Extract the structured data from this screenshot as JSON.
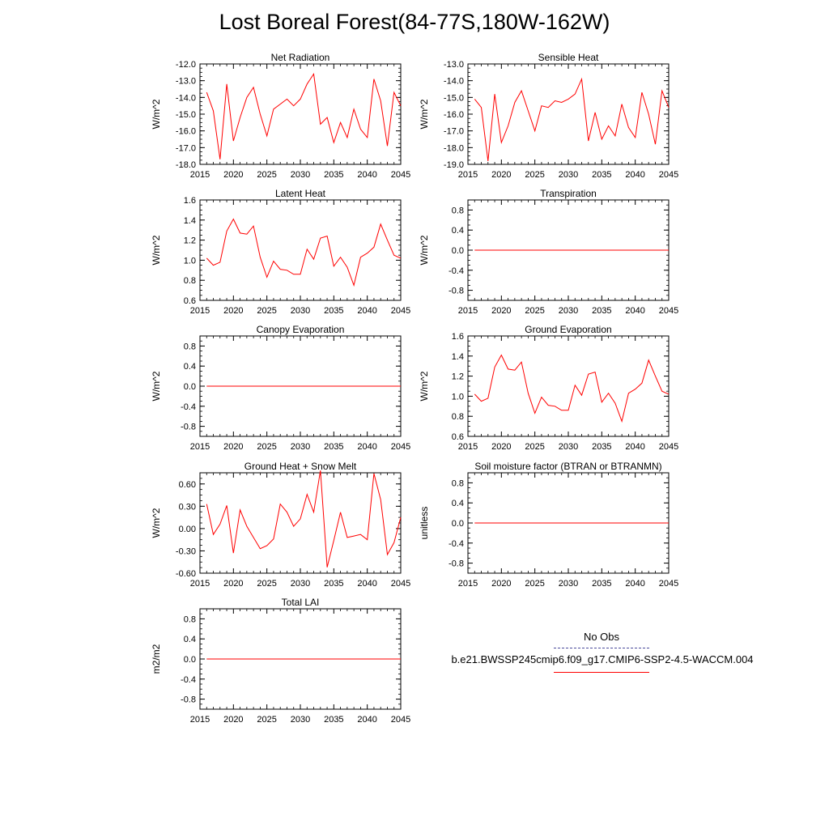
{
  "figure": {
    "title": "Lost Boreal Forest(84-77S,180W-162W)"
  },
  "legend": {
    "obs_label": "No Obs",
    "obs_color": "#4a4a9c",
    "model_label": "b.e21.BWSSP245cmip6.f09_g17.CMIP6-SSP2-4.5-WACCM.004",
    "model_color": "#ff0000"
  },
  "chart_data": [
    {
      "type": "line",
      "title": "Net Radiation",
      "ylabel": "W/m^2",
      "xlim": [
        2015,
        2045
      ],
      "ylim": [
        -18,
        -12
      ],
      "xticks": [
        2015,
        2020,
        2025,
        2030,
        2035,
        2040,
        2045
      ],
      "xtick_labels": [
        "2015",
        "2020",
        "2025",
        "2030",
        "2035",
        "2040",
        "2045"
      ],
      "yticks": [
        -18,
        -17,
        -16,
        -15,
        -14,
        -13,
        -12
      ],
      "ytick_labels": [
        "-18.0",
        "-17.0",
        "-16.0",
        "-15.0",
        "-14.0",
        "-13.0",
        "-12.0"
      ],
      "series": [
        {
          "name": "b.e21.BWSSP245cmip6.f09_g17.CMIP6-SSP2-4.5-WACCM.004",
          "color": "#ff0000",
          "x": [
            2016,
            2017,
            2018,
            2019,
            2020,
            2021,
            2022,
            2023,
            2024,
            2025,
            2026,
            2027,
            2028,
            2029,
            2030,
            2031,
            2032,
            2033,
            2034,
            2035,
            2036,
            2037,
            2038,
            2039,
            2040,
            2041,
            2042,
            2043,
            2044,
            2045
          ],
          "y": [
            -13.7,
            -14.8,
            -17.7,
            -13.2,
            -16.6,
            -15.2,
            -14.0,
            -13.4,
            -15.0,
            -16.3,
            -14.7,
            -14.4,
            -14.1,
            -14.5,
            -14.1,
            -13.2,
            -12.6,
            -15.6,
            -15.2,
            -16.7,
            -15.5,
            -16.4,
            -14.7,
            -15.9,
            -16.4,
            -12.9,
            -14.2,
            -16.9,
            -13.7,
            -14.5
          ]
        }
      ]
    },
    {
      "type": "line",
      "title": "Sensible Heat",
      "ylabel": "W/m^2",
      "xlim": [
        2015,
        2045
      ],
      "ylim": [
        -19,
        -13
      ],
      "xticks": [
        2015,
        2020,
        2025,
        2030,
        2035,
        2040,
        2045
      ],
      "xtick_labels": [
        "2015",
        "2020",
        "2025",
        "2030",
        "2035",
        "2040",
        "2045"
      ],
      "yticks": [
        -19,
        -18,
        -17,
        -16,
        -15,
        -14,
        -13
      ],
      "ytick_labels": [
        "-19.0",
        "-18.0",
        "-17.0",
        "-16.0",
        "-15.0",
        "-14.0",
        "-13.0"
      ],
      "series": [
        {
          "name": "b.e21.BWSSP245cmip6.f09_g17.CMIP6-SSP2-4.5-WACCM.004",
          "color": "#ff0000",
          "x": [
            2016,
            2017,
            2018,
            2019,
            2020,
            2021,
            2022,
            2023,
            2024,
            2025,
            2026,
            2027,
            2028,
            2029,
            2030,
            2031,
            2032,
            2033,
            2034,
            2035,
            2036,
            2037,
            2038,
            2039,
            2040,
            2041,
            2042,
            2043,
            2044,
            2045
          ],
          "y": [
            -15.1,
            -15.6,
            -18.8,
            -14.8,
            -17.7,
            -16.7,
            -15.3,
            -14.6,
            -15.8,
            -17.0,
            -15.5,
            -15.6,
            -15.2,
            -15.3,
            -15.1,
            -14.8,
            -13.9,
            -17.6,
            -15.9,
            -17.5,
            -16.7,
            -17.3,
            -15.4,
            -16.8,
            -17.4,
            -14.7,
            -16.0,
            -17.8,
            -14.6,
            -15.6
          ]
        }
      ]
    },
    {
      "type": "line",
      "title": "Latent Heat",
      "ylabel": "W/m^2",
      "xlim": [
        2015,
        2045
      ],
      "ylim": [
        0.6,
        1.6
      ],
      "xticks": [
        2015,
        2020,
        2025,
        2030,
        2035,
        2040,
        2045
      ],
      "xtick_labels": [
        "2015",
        "2020",
        "2025",
        "2030",
        "2035",
        "2040",
        "2045"
      ],
      "yticks": [
        0.6,
        0.8,
        1.0,
        1.2,
        1.4,
        1.6
      ],
      "ytick_labels": [
        "0.6",
        "0.8",
        "1.0",
        "1.2",
        "1.4",
        "1.6"
      ],
      "series": [
        {
          "name": "b.e21.BWSSP245cmip6.f09_g17.CMIP6-SSP2-4.5-WACCM.004",
          "color": "#ff0000",
          "x": [
            2016,
            2017,
            2018,
            2019,
            2020,
            2021,
            2022,
            2023,
            2024,
            2025,
            2026,
            2027,
            2028,
            2029,
            2030,
            2031,
            2032,
            2033,
            2034,
            2035,
            2036,
            2037,
            2038,
            2039,
            2040,
            2041,
            2042,
            2043,
            2044,
            2045
          ],
          "y": [
            1.02,
            0.95,
            0.98,
            1.29,
            1.41,
            1.27,
            1.26,
            1.34,
            1.03,
            0.83,
            0.99,
            0.91,
            0.9,
            0.86,
            0.86,
            1.11,
            1.01,
            1.22,
            1.24,
            0.94,
            1.03,
            0.93,
            0.75,
            1.03,
            1.07,
            1.13,
            1.36,
            1.2,
            1.05,
            1.02
          ]
        }
      ]
    },
    {
      "type": "line",
      "title": "Transpiration",
      "ylabel": "W/m^2",
      "xlim": [
        2015,
        2045
      ],
      "ylim": [
        -1,
        1
      ],
      "xticks": [
        2015,
        2020,
        2025,
        2030,
        2035,
        2040,
        2045
      ],
      "xtick_labels": [
        "2015",
        "2020",
        "2025",
        "2030",
        "2035",
        "2040",
        "2045"
      ],
      "yticks": [
        -0.8,
        -0.4,
        0.0,
        0.4,
        0.8
      ],
      "ytick_labels": [
        "-0.8",
        "-0.4",
        "0.0",
        "0.4",
        "0.8"
      ],
      "series": [
        {
          "name": "b.e21.BWSSP245cmip6.f09_g17.CMIP6-SSP2-4.5-WACCM.004",
          "color": "#ff0000",
          "x": [
            2016,
            2045
          ],
          "y": [
            0.0,
            0.0
          ]
        }
      ]
    },
    {
      "type": "line",
      "title": "Canopy Evaporation",
      "ylabel": "W/m^2",
      "xlim": [
        2015,
        2045
      ],
      "ylim": [
        -1,
        1
      ],
      "xticks": [
        2015,
        2020,
        2025,
        2030,
        2035,
        2040,
        2045
      ],
      "xtick_labels": [
        "2015",
        "2020",
        "2025",
        "2030",
        "2035",
        "2040",
        "2045"
      ],
      "yticks": [
        -0.8,
        -0.4,
        0.0,
        0.4,
        0.8
      ],
      "ytick_labels": [
        "-0.8",
        "-0.4",
        "0.0",
        "0.4",
        "0.8"
      ],
      "series": [
        {
          "name": "b.e21.BWSSP245cmip6.f09_g17.CMIP6-SSP2-4.5-WACCM.004",
          "color": "#ff0000",
          "x": [
            2016,
            2045
          ],
          "y": [
            0.0,
            0.0
          ]
        }
      ]
    },
    {
      "type": "line",
      "title": "Ground Evaporation",
      "ylabel": "W/m^2",
      "xlim": [
        2015,
        2045
      ],
      "ylim": [
        0.6,
        1.6
      ],
      "xticks": [
        2015,
        2020,
        2025,
        2030,
        2035,
        2040,
        2045
      ],
      "xtick_labels": [
        "2015",
        "2020",
        "2025",
        "2030",
        "2035",
        "2040",
        "2045"
      ],
      "yticks": [
        0.6,
        0.8,
        1.0,
        1.2,
        1.4,
        1.6
      ],
      "ytick_labels": [
        "0.6",
        "0.8",
        "1.0",
        "1.2",
        "1.4",
        "1.6"
      ],
      "series": [
        {
          "name": "b.e21.BWSSP245cmip6.f09_g17.CMIP6-SSP2-4.5-WACCM.004",
          "color": "#ff0000",
          "x": [
            2016,
            2017,
            2018,
            2019,
            2020,
            2021,
            2022,
            2023,
            2024,
            2025,
            2026,
            2027,
            2028,
            2029,
            2030,
            2031,
            2032,
            2033,
            2034,
            2035,
            2036,
            2037,
            2038,
            2039,
            2040,
            2041,
            2042,
            2043,
            2044,
            2045
          ],
          "y": [
            1.02,
            0.95,
            0.98,
            1.29,
            1.41,
            1.27,
            1.26,
            1.34,
            1.03,
            0.83,
            0.99,
            0.91,
            0.9,
            0.86,
            0.86,
            1.11,
            1.01,
            1.22,
            1.24,
            0.94,
            1.03,
            0.93,
            0.75,
            1.03,
            1.07,
            1.13,
            1.36,
            1.2,
            1.05,
            1.02
          ]
        }
      ]
    },
    {
      "type": "line",
      "title": "Ground Heat + Snow Melt",
      "ylabel": "W/m^2",
      "xlim": [
        2015,
        2045
      ],
      "ylim": [
        -0.6,
        0.75
      ],
      "xticks": [
        2015,
        2020,
        2025,
        2030,
        2035,
        2040,
        2045
      ],
      "xtick_labels": [
        "2015",
        "2020",
        "2025",
        "2030",
        "2035",
        "2040",
        "2045"
      ],
      "yticks": [
        -0.6,
        -0.3,
        0.0,
        0.3,
        0.6
      ],
      "ytick_labels": [
        "-0.60",
        "-0.30",
        "0.00",
        "0.30",
        "0.60"
      ],
      "series": [
        {
          "name": "b.e21.BWSSP245cmip6.f09_g17.CMIP6-SSP2-4.5-WACCM.004",
          "color": "#ff0000",
          "x": [
            2016,
            2017,
            2018,
            2019,
            2020,
            2021,
            2022,
            2023,
            2024,
            2025,
            2026,
            2027,
            2028,
            2029,
            2030,
            2031,
            2032,
            2033,
            2034,
            2035,
            2036,
            2037,
            2038,
            2039,
            2040,
            2041,
            2042,
            2043,
            2044,
            2045
          ],
          "y": [
            0.33,
            -0.08,
            0.06,
            0.31,
            -0.33,
            0.25,
            0.03,
            -0.12,
            -0.27,
            -0.23,
            -0.14,
            0.33,
            0.22,
            0.03,
            0.13,
            0.46,
            0.22,
            0.78,
            -0.52,
            -0.16,
            0.22,
            -0.12,
            -0.1,
            -0.08,
            -0.15,
            0.74,
            0.39,
            -0.35,
            -0.19,
            0.15
          ]
        }
      ]
    },
    {
      "type": "line",
      "title": "Soil moisture factor (BTRAN or BTRANMN)",
      "ylabel": "unitless",
      "xlim": [
        2015,
        2045
      ],
      "ylim": [
        -1,
        1
      ],
      "xticks": [
        2015,
        2020,
        2025,
        2030,
        2035,
        2040,
        2045
      ],
      "xtick_labels": [
        "2015",
        "2020",
        "2025",
        "2030",
        "2035",
        "2040",
        "2045"
      ],
      "yticks": [
        -0.8,
        -0.4,
        0.0,
        0.4,
        0.8
      ],
      "ytick_labels": [
        "-0.8",
        "-0.4",
        "0.0",
        "0.4",
        "0.8"
      ],
      "series": [
        {
          "name": "b.e21.BWSSP245cmip6.f09_g17.CMIP6-SSP2-4.5-WACCM.004",
          "color": "#ff0000",
          "x": [
            2016,
            2045
          ],
          "y": [
            0.0,
            0.0
          ]
        }
      ]
    },
    {
      "type": "line",
      "title": "Total LAI",
      "ylabel": "m2/m2",
      "xlim": [
        2015,
        2045
      ],
      "ylim": [
        -1,
        1
      ],
      "xticks": [
        2015,
        2020,
        2025,
        2030,
        2035,
        2040,
        2045
      ],
      "xtick_labels": [
        "2015",
        "2020",
        "2025",
        "2030",
        "2035",
        "2040",
        "2045"
      ],
      "yticks": [
        -0.8,
        -0.4,
        0.0,
        0.4,
        0.8
      ],
      "ytick_labels": [
        "-0.8",
        "-0.4",
        "0.0",
        "0.4",
        "0.8"
      ],
      "series": [
        {
          "name": "b.e21.BWSSP245cmip6.f09_g17.CMIP6-SSP2-4.5-WACCM.004",
          "color": "#ff0000",
          "x": [
            2016,
            2045
          ],
          "y": [
            0.0,
            0.0
          ]
        }
      ]
    }
  ]
}
